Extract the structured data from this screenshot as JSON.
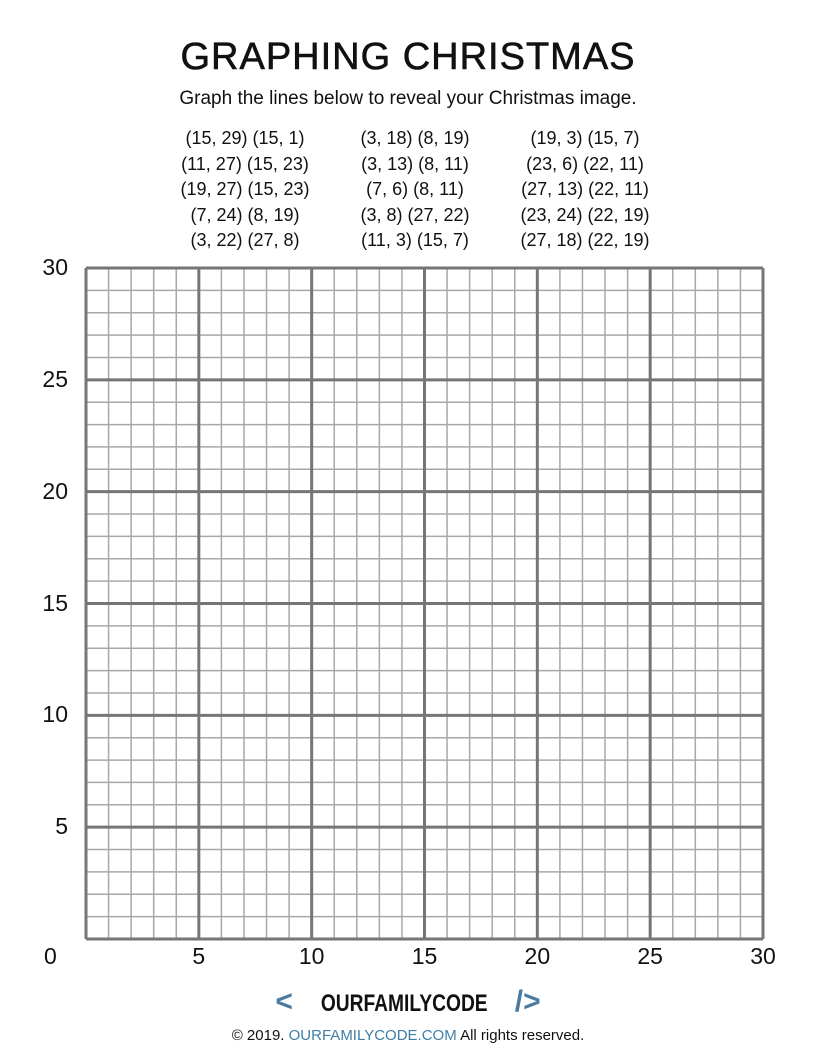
{
  "header": {
    "title": "GRAPHING CHRISTMAS",
    "subtitle": "Graph the lines below to reveal your Christmas image."
  },
  "line_pairs": [
    [
      "(15, 29) (15, 1)",
      "(11, 27) (15, 23)",
      "(19, 27) (15, 23)",
      "(7, 24) (8, 19)",
      "(3, 22) (27, 8)"
    ],
    [
      "(3, 18) (8, 19)",
      "(3, 13) (8, 11)",
      "(7, 6) (8, 11)",
      "(3, 8) (27, 22)",
      "(11, 3) (15, 7)"
    ],
    [
      "(19, 3) (15, 7)",
      "(23, 6) (22, 11)",
      "(27, 13) (22, 11)",
      "(23, 24) (22, 19)",
      "(27, 18) (22, 19)"
    ]
  ],
  "graph": {
    "x_range": [
      0,
      30
    ],
    "y_range": [
      0,
      30
    ],
    "minor_step": 1,
    "major_step": 5,
    "x_tick_labels": [
      "0",
      "5",
      "10",
      "15",
      "20",
      "25",
      "30"
    ],
    "y_tick_labels": [
      "30",
      "25",
      "20",
      "15",
      "10",
      "5"
    ],
    "minor_color": "#a8a8a8",
    "major_color": "#767676"
  },
  "footer": {
    "logo_left": "<",
    "logo_name": "OURFAMILYCODE",
    "logo_right": "/>",
    "brand_color": "#4a7aa0",
    "copyright": "© 2019.",
    "site": "OURFAMILYCODE.COM",
    "rights": "All rights reserved."
  }
}
